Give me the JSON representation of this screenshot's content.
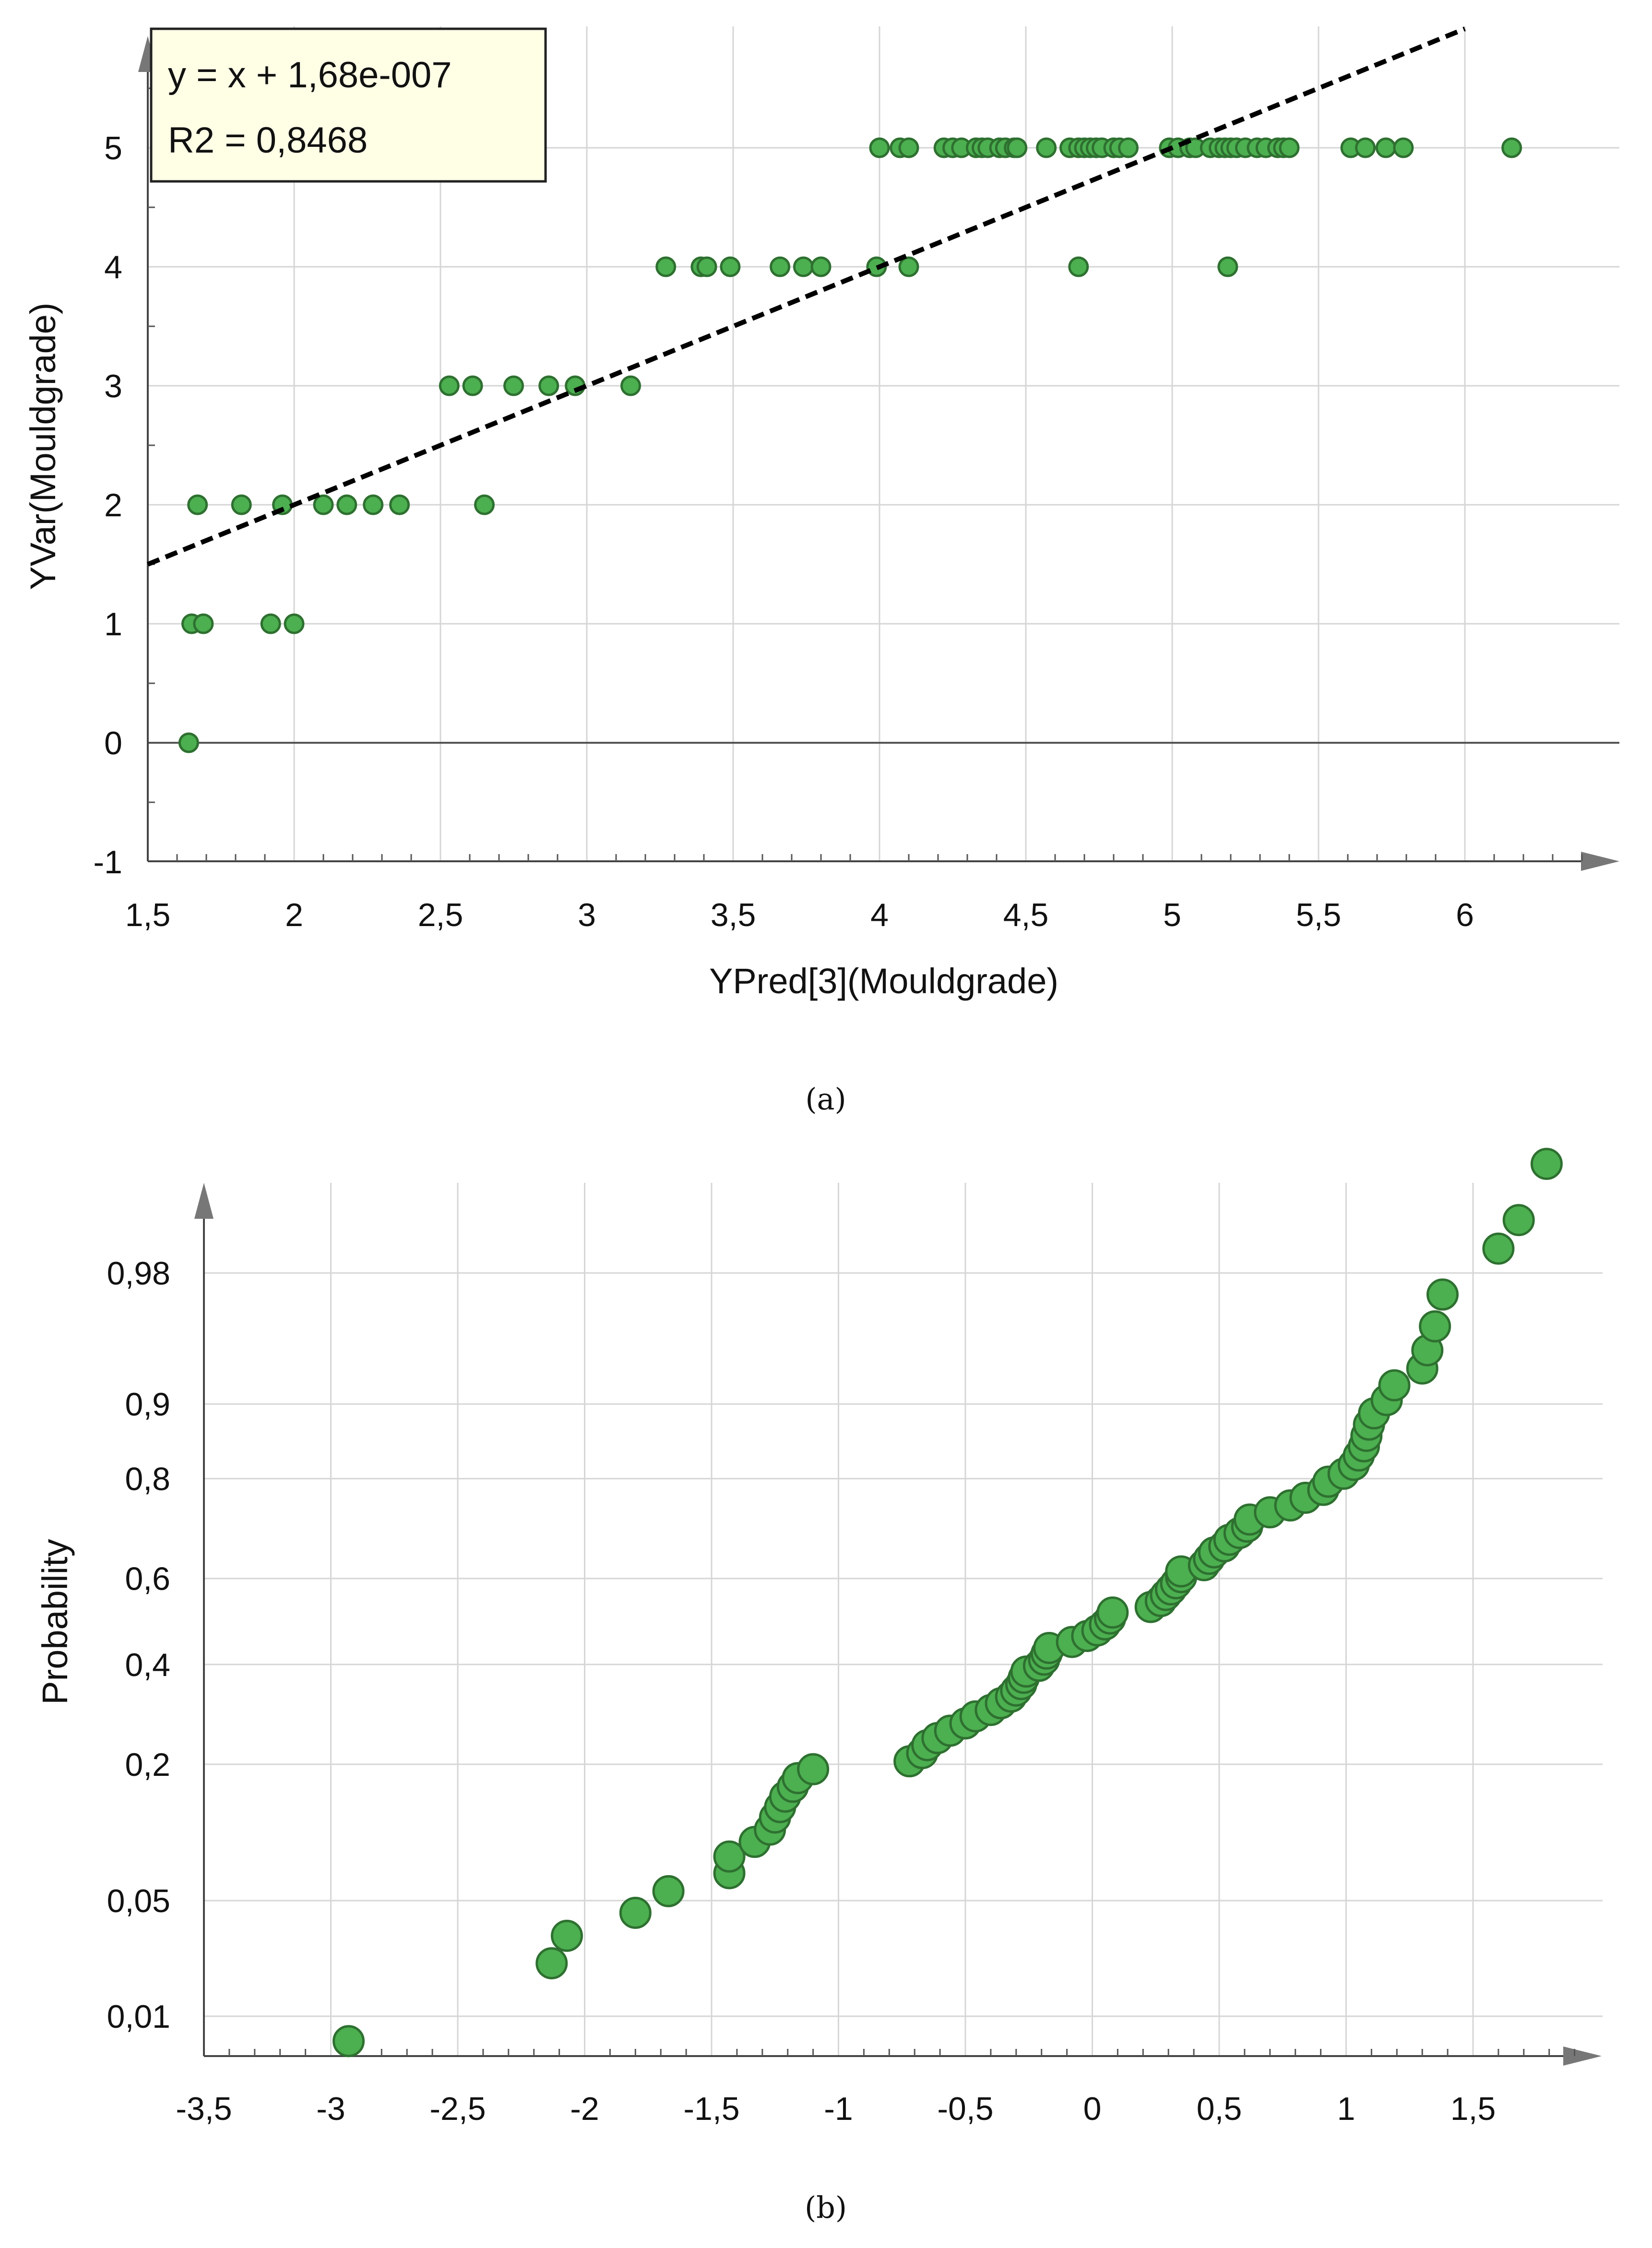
{
  "chart_data": [
    {
      "type": "scatter",
      "panel": "a",
      "caption": "(a)",
      "xlabel": "YPred[3](Mouldgrade)",
      "ylabel": "YVar(Mouldgrade)",
      "xlim": [
        1.5,
        6.5
      ],
      "ylim": [
        -1,
        6
      ],
      "xticks": [
        1.5,
        2,
        2.5,
        3,
        3.5,
        4,
        4.5,
        5,
        5.5,
        6
      ],
      "xtick_labels": [
        "1,5",
        "2",
        "2,5",
        "3",
        "3,5",
        "4",
        "4,5",
        "5",
        "5,5",
        "6"
      ],
      "yticks": [
        -1,
        0,
        1,
        2,
        3,
        4,
        5
      ],
      "ytick_labels": [
        "-1",
        "0",
        "1",
        "2",
        "3",
        "4",
        "5"
      ],
      "grid": true,
      "legend": {
        "position": "top-left",
        "lines": [
          "y = x + 1,68e-007",
          "R2 = 0,8468"
        ]
      },
      "fit_line": {
        "slope": 1,
        "intercept": 1.68e-07,
        "style": "dashed",
        "color": "#000000"
      },
      "point_color": "#4caf50",
      "points": [
        [
          1.64,
          0
        ],
        [
          1.65,
          1
        ],
        [
          1.69,
          1
        ],
        [
          1.92,
          1
        ],
        [
          2.0,
          1
        ],
        [
          1.67,
          2
        ],
        [
          1.82,
          2
        ],
        [
          1.96,
          2
        ],
        [
          2.1,
          2
        ],
        [
          2.18,
          2
        ],
        [
          2.27,
          2
        ],
        [
          2.36,
          2
        ],
        [
          2.65,
          2
        ],
        [
          2.53,
          3
        ],
        [
          2.61,
          3
        ],
        [
          2.75,
          3
        ],
        [
          2.87,
          3
        ],
        [
          2.96,
          3
        ],
        [
          3.15,
          3
        ],
        [
          3.27,
          4
        ],
        [
          3.39,
          4
        ],
        [
          3.41,
          4
        ],
        [
          3.49,
          4
        ],
        [
          3.66,
          4
        ],
        [
          3.74,
          4
        ],
        [
          3.8,
          4
        ],
        [
          3.99,
          4
        ],
        [
          4.1,
          4
        ],
        [
          4.68,
          4
        ],
        [
          5.19,
          4
        ],
        [
          4.0,
          5
        ],
        [
          4.07,
          5
        ],
        [
          4.1,
          5
        ],
        [
          4.22,
          5
        ],
        [
          4.25,
          5
        ],
        [
          4.28,
          5
        ],
        [
          4.33,
          5
        ],
        [
          4.35,
          5
        ],
        [
          4.37,
          5
        ],
        [
          4.41,
          5
        ],
        [
          4.43,
          5
        ],
        [
          4.46,
          5
        ],
        [
          4.47,
          5
        ],
        [
          4.57,
          5
        ],
        [
          4.65,
          5
        ],
        [
          4.68,
          5
        ],
        [
          4.7,
          5
        ],
        [
          4.72,
          5
        ],
        [
          4.74,
          5
        ],
        [
          4.76,
          5
        ],
        [
          4.8,
          5
        ],
        [
          4.82,
          5
        ],
        [
          4.85,
          5
        ],
        [
          4.99,
          5
        ],
        [
          5.02,
          5
        ],
        [
          5.06,
          5
        ],
        [
          5.08,
          5
        ],
        [
          5.13,
          5
        ],
        [
          5.16,
          5
        ],
        [
          5.18,
          5
        ],
        [
          5.2,
          5
        ],
        [
          5.22,
          5
        ],
        [
          5.25,
          5
        ],
        [
          5.29,
          5
        ],
        [
          5.32,
          5
        ],
        [
          5.36,
          5
        ],
        [
          5.38,
          5
        ],
        [
          5.4,
          5
        ],
        [
          5.61,
          5
        ],
        [
          5.66,
          5
        ],
        [
          5.73,
          5
        ],
        [
          5.79,
          5
        ],
        [
          6.16,
          5
        ]
      ]
    },
    {
      "type": "scatter",
      "panel": "b",
      "caption": "(b)",
      "xlabel": "",
      "ylabel": "Probability",
      "xlim": [
        -3.5,
        2
      ],
      "yscale": "normal-probability",
      "xticks": [
        -3.5,
        -3,
        -2.5,
        -2,
        -1.5,
        -1,
        -0.5,
        0,
        0.5,
        1,
        1.5
      ],
      "xtick_labels": [
        "-3,5",
        "-3",
        "-2,5",
        "-2",
        "-1,5",
        "-1",
        "-0,5",
        "0",
        "0,5",
        "1",
        "1,5"
      ],
      "yticks": [
        0.01,
        0.05,
        0.2,
        0.4,
        0.6,
        0.8,
        0.9,
        0.98
      ],
      "ytick_labels": [
        "0,01",
        "0,05",
        "0,2",
        "0,4",
        "0,6",
        "0,8",
        "0,9",
        "0,98"
      ],
      "grid": true,
      "point_color": "#4caf50",
      "points": [
        [
          -2.93,
          0.0067
        ],
        [
          -2.13,
          0.022
        ],
        [
          -2.07,
          0.032
        ],
        [
          -1.8,
          0.043
        ],
        [
          -1.67,
          0.056
        ],
        [
          -1.43,
          0.069
        ],
        [
          -1.43,
          0.083
        ],
        [
          -1.33,
          0.097
        ],
        [
          -1.27,
          0.11
        ],
        [
          -1.25,
          0.124
        ],
        [
          -1.23,
          0.137
        ],
        [
          -1.21,
          0.151
        ],
        [
          -1.18,
          0.165
        ],
        [
          -1.16,
          0.178
        ],
        [
          -1.1,
          0.192
        ],
        [
          -0.72,
          0.205
        ],
        [
          -0.67,
          0.219
        ],
        [
          -0.65,
          0.233
        ],
        [
          -0.61,
          0.246
        ],
        [
          -0.56,
          0.26
        ],
        [
          -0.5,
          0.274
        ],
        [
          -0.46,
          0.288
        ],
        [
          -0.4,
          0.301
        ],
        [
          -0.36,
          0.315
        ],
        [
          -0.32,
          0.329
        ],
        [
          -0.3,
          0.342
        ],
        [
          -0.28,
          0.356
        ],
        [
          -0.27,
          0.37
        ],
        [
          -0.26,
          0.384
        ],
        [
          -0.21,
          0.397
        ],
        [
          -0.19,
          0.411
        ],
        [
          -0.18,
          0.425
        ],
        [
          -0.17,
          0.438
        ],
        [
          -0.08,
          0.452
        ],
        [
          -0.02,
          0.466
        ],
        [
          0.02,
          0.479
        ],
        [
          0.05,
          0.493
        ],
        [
          0.07,
          0.507
        ],
        [
          0.08,
          0.521
        ],
        [
          0.23,
          0.534
        ],
        [
          0.27,
          0.548
        ],
        [
          0.29,
          0.562
        ],
        [
          0.31,
          0.575
        ],
        [
          0.33,
          0.589
        ],
        [
          0.35,
          0.603
        ],
        [
          0.35,
          0.616
        ],
        [
          0.44,
          0.63
        ],
        [
          0.46,
          0.644
        ],
        [
          0.48,
          0.658
        ],
        [
          0.52,
          0.671
        ],
        [
          0.54,
          0.685
        ],
        [
          0.58,
          0.699
        ],
        [
          0.61,
          0.712
        ],
        [
          0.62,
          0.726
        ],
        [
          0.7,
          0.74
        ],
        [
          0.78,
          0.753
        ],
        [
          0.84,
          0.767
        ],
        [
          0.91,
          0.781
        ],
        [
          0.93,
          0.795
        ],
        [
          0.99,
          0.808
        ],
        [
          1.03,
          0.822
        ],
        [
          1.05,
          0.836
        ],
        [
          1.07,
          0.849
        ],
        [
          1.08,
          0.863
        ],
        [
          1.09,
          0.877
        ],
        [
          1.11,
          0.89
        ],
        [
          1.16,
          0.904
        ],
        [
          1.19,
          0.918
        ],
        [
          1.3,
          0.932
        ],
        [
          1.32,
          0.945
        ],
        [
          1.35,
          0.959
        ],
        [
          1.38,
          0.973
        ],
        [
          1.6,
          0.986
        ],
        [
          1.68,
          0.991
        ],
        [
          1.79,
          0.9965
        ]
      ]
    }
  ]
}
